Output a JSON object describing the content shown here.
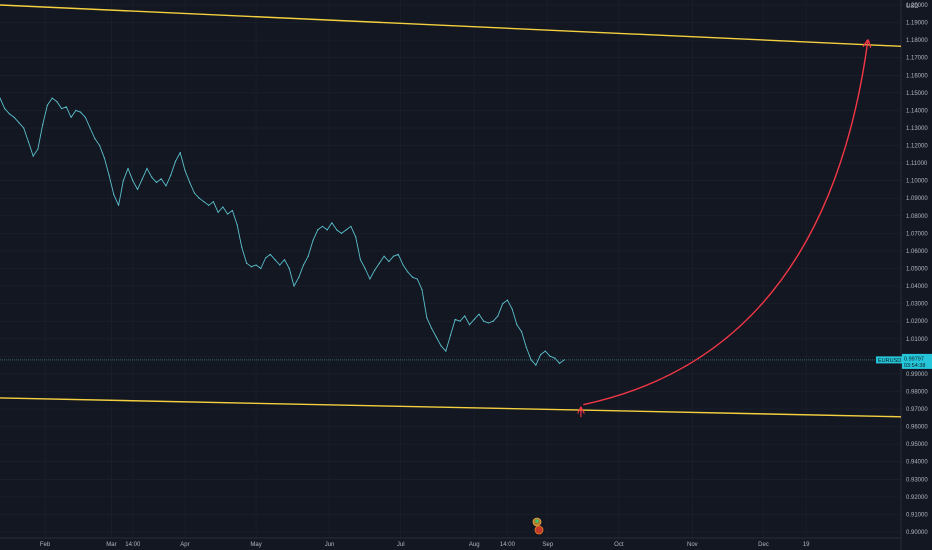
{
  "chart_data": {
    "type": "line",
    "symbol": "EURUSD",
    "currency_label": "USD",
    "last_price": "0.99797",
    "countdown": "03:54:38",
    "y_ticks": [
      "1.20000",
      "1.19000",
      "1.18000",
      "1.17000",
      "1.16000",
      "1.15000",
      "1.14000",
      "1.13000",
      "1.12000",
      "1.11000",
      "1.10000",
      "1.09000",
      "1.08000",
      "1.07000",
      "1.06000",
      "1.05000",
      "1.04000",
      "1.03000",
      "1.02000",
      "1.01000",
      "1.00000",
      "0.99000",
      "0.98000",
      "0.97000",
      "0.96000",
      "0.95000",
      "0.94000",
      "0.93000",
      "0.92000",
      "0.91000",
      "0.90000"
    ],
    "ylim": [
      0.9,
      1.2
    ],
    "x_ticks": [
      {
        "label": "Feb",
        "day": 31
      },
      {
        "label": "Mar",
        "day": 59
      },
      {
        "label": "14:00",
        "day": 68
      },
      {
        "label": "Apr",
        "day": 90
      },
      {
        "label": "May",
        "day": 120
      },
      {
        "label": "Jun",
        "day": 151
      },
      {
        "label": "Jul",
        "day": 181
      },
      {
        "label": "Aug",
        "day": 212
      },
      {
        "label": "14:00",
        "day": 226
      },
      {
        "label": "Sep",
        "day": 243
      },
      {
        "label": "Oct",
        "day": 273
      },
      {
        "label": "Nov",
        "day": 304
      },
      {
        "label": "Dec",
        "day": 334
      },
      {
        "label": "19",
        "day": 352
      }
    ],
    "xlim": [
      12,
      392
    ],
    "series": [
      {
        "points": [
          {
            "day": 12,
            "value": 1.147
          },
          {
            "day": 14,
            "value": 1.141
          },
          {
            "day": 16,
            "value": 1.138
          },
          {
            "day": 18,
            "value": 1.136
          },
          {
            "day": 20,
            "value": 1.133
          },
          {
            "day": 22,
            "value": 1.13
          },
          {
            "day": 24,
            "value": 1.122
          },
          {
            "day": 26,
            "value": 1.114
          },
          {
            "day": 28,
            "value": 1.118
          },
          {
            "day": 30,
            "value": 1.132
          },
          {
            "day": 32,
            "value": 1.143
          },
          {
            "day": 34,
            "value": 1.147
          },
          {
            "day": 36,
            "value": 1.145
          },
          {
            "day": 38,
            "value": 1.141
          },
          {
            "day": 40,
            "value": 1.142
          },
          {
            "day": 42,
            "value": 1.136
          },
          {
            "day": 44,
            "value": 1.14
          },
          {
            "day": 46,
            "value": 1.139
          },
          {
            "day": 48,
            "value": 1.136
          },
          {
            "day": 50,
            "value": 1.13
          },
          {
            "day": 52,
            "value": 1.124
          },
          {
            "day": 54,
            "value": 1.12
          },
          {
            "day": 56,
            "value": 1.113
          },
          {
            "day": 58,
            "value": 1.103
          },
          {
            "day": 60,
            "value": 1.092
          },
          {
            "day": 62,
            "value": 1.086
          },
          {
            "day": 64,
            "value": 1.1
          },
          {
            "day": 66,
            "value": 1.107
          },
          {
            "day": 68,
            "value": 1.1
          },
          {
            "day": 70,
            "value": 1.095
          },
          {
            "day": 72,
            "value": 1.101
          },
          {
            "day": 74,
            "value": 1.107
          },
          {
            "day": 76,
            "value": 1.102
          },
          {
            "day": 78,
            "value": 1.099
          },
          {
            "day": 80,
            "value": 1.101
          },
          {
            "day": 82,
            "value": 1.097
          },
          {
            "day": 84,
            "value": 1.103
          },
          {
            "day": 86,
            "value": 1.111
          },
          {
            "day": 88,
            "value": 1.116
          },
          {
            "day": 90,
            "value": 1.106
          },
          {
            "day": 92,
            "value": 1.099
          },
          {
            "day": 94,
            "value": 1.093
          },
          {
            "day": 96,
            "value": 1.09
          },
          {
            "day": 98,
            "value": 1.088
          },
          {
            "day": 100,
            "value": 1.086
          },
          {
            "day": 102,
            "value": 1.088
          },
          {
            "day": 104,
            "value": 1.082
          },
          {
            "day": 106,
            "value": 1.085
          },
          {
            "day": 108,
            "value": 1.081
          },
          {
            "day": 110,
            "value": 1.083
          },
          {
            "day": 112,
            "value": 1.075
          },
          {
            "day": 114,
            "value": 1.062
          },
          {
            "day": 116,
            "value": 1.053
          },
          {
            "day": 118,
            "value": 1.051
          },
          {
            "day": 120,
            "value": 1.052
          },
          {
            "day": 122,
            "value": 1.05
          },
          {
            "day": 124,
            "value": 1.056
          },
          {
            "day": 126,
            "value": 1.058
          },
          {
            "day": 128,
            "value": 1.055
          },
          {
            "day": 130,
            "value": 1.052
          },
          {
            "day": 132,
            "value": 1.055
          },
          {
            "day": 134,
            "value": 1.05
          },
          {
            "day": 136,
            "value": 1.04
          },
          {
            "day": 138,
            "value": 1.045
          },
          {
            "day": 140,
            "value": 1.052
          },
          {
            "day": 142,
            "value": 1.057
          },
          {
            "day": 144,
            "value": 1.066
          },
          {
            "day": 146,
            "value": 1.072
          },
          {
            "day": 148,
            "value": 1.074
          },
          {
            "day": 150,
            "value": 1.072
          },
          {
            "day": 152,
            "value": 1.076
          },
          {
            "day": 154,
            "value": 1.072
          },
          {
            "day": 156,
            "value": 1.07
          },
          {
            "day": 158,
            "value": 1.072
          },
          {
            "day": 160,
            "value": 1.074
          },
          {
            "day": 162,
            "value": 1.068
          },
          {
            "day": 164,
            "value": 1.055
          },
          {
            "day": 166,
            "value": 1.05
          },
          {
            "day": 168,
            "value": 1.044
          },
          {
            "day": 170,
            "value": 1.049
          },
          {
            "day": 172,
            "value": 1.053
          },
          {
            "day": 174,
            "value": 1.057
          },
          {
            "day": 176,
            "value": 1.054
          },
          {
            "day": 178,
            "value": 1.057
          },
          {
            "day": 180,
            "value": 1.058
          },
          {
            "day": 182,
            "value": 1.052
          },
          {
            "day": 184,
            "value": 1.048
          },
          {
            "day": 186,
            "value": 1.045
          },
          {
            "day": 188,
            "value": 1.044
          },
          {
            "day": 190,
            "value": 1.038
          },
          {
            "day": 192,
            "value": 1.022
          },
          {
            "day": 194,
            "value": 1.016
          },
          {
            "day": 196,
            "value": 1.011
          },
          {
            "day": 198,
            "value": 1.006
          },
          {
            "day": 200,
            "value": 1.003
          },
          {
            "day": 202,
            "value": 1.012
          },
          {
            "day": 204,
            "value": 1.021
          },
          {
            "day": 206,
            "value": 1.02
          },
          {
            "day": 208,
            "value": 1.023
          },
          {
            "day": 210,
            "value": 1.018
          },
          {
            "day": 212,
            "value": 1.021
          },
          {
            "day": 214,
            "value": 1.024
          },
          {
            "day": 216,
            "value": 1.02
          },
          {
            "day": 218,
            "value": 1.019
          },
          {
            "day": 220,
            "value": 1.02
          },
          {
            "day": 222,
            "value": 1.023
          },
          {
            "day": 224,
            "value": 1.03
          },
          {
            "day": 226,
            "value": 1.032
          },
          {
            "day": 228,
            "value": 1.027
          },
          {
            "day": 230,
            "value": 1.018
          },
          {
            "day": 232,
            "value": 1.014
          },
          {
            "day": 234,
            "value": 1.005
          },
          {
            "day": 236,
            "value": 0.998
          },
          {
            "day": 238,
            "value": 0.995
          },
          {
            "day": 240,
            "value": 1.001
          },
          {
            "day": 242,
            "value": 1.003
          },
          {
            "day": 244,
            "value": 1.0
          },
          {
            "day": 246,
            "value": 0.999
          },
          {
            "day": 248,
            "value": 0.996
          },
          {
            "day": 250,
            "value": 0.998
          }
        ]
      }
    ],
    "trendlines": [
      {
        "name": "upper-channel",
        "color": "#f4d03f",
        "from": {
          "day": 12,
          "value": 1.2
        },
        "to": {
          "day": 392,
          "value": 1.1765
        }
      },
      {
        "name": "lower-channel",
        "color": "#f4d03f",
        "from": {
          "day": 12,
          "value": 0.9763
        },
        "to": {
          "day": 392,
          "value": 0.9656
        }
      }
    ],
    "projection": {
      "color": "#f23645",
      "from": {
        "day": 258,
        "value": 0.9725
      },
      "control": {
        "day": 360,
        "value": 1.002
      },
      "to": {
        "day": 378,
        "value": 1.1795
      }
    },
    "marker_arrow": {
      "color": "#f23645",
      "day": 257,
      "value": 0.9705
    },
    "colors": {
      "background": "#131722",
      "grid": "#1e222d",
      "price_line": "#5bc0cc",
      "axis_text": "#b2b5be",
      "badge": "#26c6da"
    }
  }
}
